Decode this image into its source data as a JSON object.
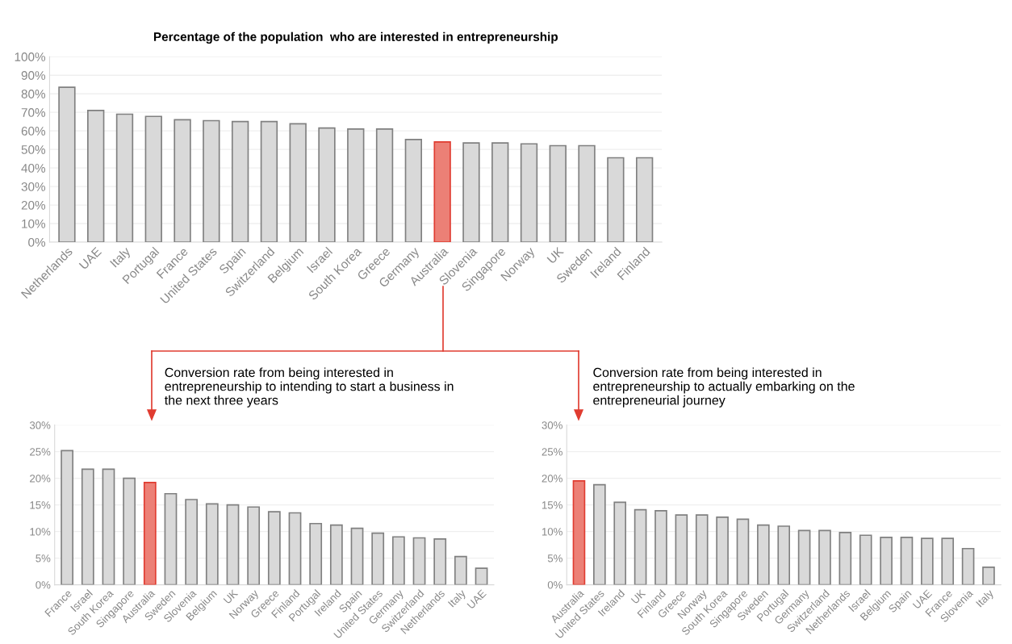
{
  "chart_data": [
    {
      "type": "bar",
      "title": "Percentage of the population  who are interested in entrepreneurship",
      "categories": [
        "Netherlands",
        "UAE",
        "Italy",
        "Portugal",
        "France",
        "United States",
        "Spain",
        "Switzerland",
        "Belgium",
        "Israel",
        "South Korea",
        "Greece",
        "Germany",
        "Australia",
        "Slovenia",
        "Singapore",
        "Norway",
        "UK",
        "Sweden",
        "Ireland",
        "Finland"
      ],
      "values": [
        83.5,
        71,
        69,
        67.8,
        66,
        65.5,
        65,
        65,
        63.8,
        61.5,
        61,
        61,
        55.3,
        54,
        53.5,
        53.5,
        53,
        52,
        52,
        45.5,
        45.5
      ],
      "colors": [
        "#d9d9d9",
        "#d9d9d9",
        "#d9d9d9",
        "#d9d9d9",
        "#d9d9d9",
        "#d9d9d9",
        "#d9d9d9",
        "#d9d9d9",
        "#d9d9d9",
        "#d9d9d9",
        "#d9d9d9",
        "#d9d9d9",
        "#d9d9d9",
        "#ec8076",
        "#d9d9d9",
        "#d9d9d9",
        "#d9d9d9",
        "#d9d9d9",
        "#d9d9d9",
        "#d9d9d9",
        "#d9d9d9"
      ],
      "ylim": [
        0,
        100
      ],
      "yticks": [
        {
          "value": 0,
          "label": "0%"
        },
        {
          "value": 10,
          "label": "10%"
        },
        {
          "value": 20,
          "label": "20%"
        },
        {
          "value": 30,
          "label": "30%"
        },
        {
          "value": 40,
          "label": "40%"
        },
        {
          "value": 50,
          "label": "50%"
        },
        {
          "value": 60,
          "label": "60%"
        },
        {
          "value": 70,
          "label": "70%"
        },
        {
          "value": 80,
          "label": "80%"
        },
        {
          "value": 90,
          "label": "90%"
        },
        {
          "value": 100,
          "label": "100%"
        }
      ],
      "grid": "y"
    },
    {
      "type": "bar",
      "title": "Conversion rate from being interested in entrepreneurship to intending to start a business in the next three years",
      "categories": [
        "France",
        "Israel",
        "South Korea",
        "Singapore",
        "Australia",
        "Sweden",
        "Slovenia",
        "Belgium",
        "UK",
        "Norway",
        "Greece",
        "Finland",
        "Portugal",
        "Ireland",
        "Spain",
        "United States",
        "Germany",
        "Switzerland",
        "Netherlands",
        "Italy",
        "UAE"
      ],
      "values": [
        25.2,
        21.7,
        21.7,
        20,
        19.2,
        17.1,
        16,
        15.2,
        15,
        14.6,
        13.7,
        13.5,
        11.5,
        11.2,
        10.6,
        9.7,
        9,
        8.8,
        8.6,
        5.3,
        3.1
      ],
      "colors": [
        "#d9d9d9",
        "#d9d9d9",
        "#d9d9d9",
        "#d9d9d9",
        "#ec8076",
        "#d9d9d9",
        "#d9d9d9",
        "#d9d9d9",
        "#d9d9d9",
        "#d9d9d9",
        "#d9d9d9",
        "#d9d9d9",
        "#d9d9d9",
        "#d9d9d9",
        "#d9d9d9",
        "#d9d9d9",
        "#d9d9d9",
        "#d9d9d9",
        "#d9d9d9",
        "#d9d9d9",
        "#d9d9d9"
      ],
      "ylim": [
        0,
        30
      ],
      "yticks": [
        {
          "value": 0,
          "label": "0%"
        },
        {
          "value": 5,
          "label": "5%"
        },
        {
          "value": 10,
          "label": "10%"
        },
        {
          "value": 15,
          "label": "15%"
        },
        {
          "value": 20,
          "label": "20%"
        },
        {
          "value": 25,
          "label": "25%"
        },
        {
          "value": 30,
          "label": "30%"
        }
      ],
      "grid": "y"
    },
    {
      "type": "bar",
      "title": "Conversion rate from being interested in entrepreneurship to actually embarking on the entrepreneurial journey",
      "categories": [
        "Australia",
        "United States",
        "Ireland",
        "UK",
        "Finland",
        "Greece",
        "Norway",
        "South Korea",
        "Singapore",
        "Sweden",
        "Portugal",
        "Germany",
        "Switzerland",
        "Netherlands",
        "Israel",
        "Belgium",
        "Spain",
        "UAE",
        "France",
        "Slovenia",
        "Italy"
      ],
      "values": [
        19.5,
        18.8,
        15.5,
        14.1,
        13.9,
        13.1,
        13.1,
        12.7,
        12.3,
        11.2,
        11,
        10.2,
        10.2,
        9.8,
        9.3,
        8.9,
        8.9,
        8.7,
        8.7,
        6.8,
        3.3
      ],
      "colors": [
        "#ec8076",
        "#d9d9d9",
        "#d9d9d9",
        "#d9d9d9",
        "#d9d9d9",
        "#d9d9d9",
        "#d9d9d9",
        "#d9d9d9",
        "#d9d9d9",
        "#d9d9d9",
        "#d9d9d9",
        "#d9d9d9",
        "#d9d9d9",
        "#d9d9d9",
        "#d9d9d9",
        "#d9d9d9",
        "#d9d9d9",
        "#d9d9d9",
        "#d9d9d9",
        "#d9d9d9",
        "#d9d9d9"
      ],
      "ylim": [
        0,
        30
      ],
      "yticks": [
        {
          "value": 0,
          "label": "0%"
        },
        {
          "value": 5,
          "label": "5%"
        },
        {
          "value": 10,
          "label": "10%"
        },
        {
          "value": 15,
          "label": "15%"
        },
        {
          "value": 20,
          "label": "20%"
        },
        {
          "value": 25,
          "label": "25%"
        },
        {
          "value": 30,
          "label": "30%"
        }
      ],
      "grid": "y"
    }
  ]
}
